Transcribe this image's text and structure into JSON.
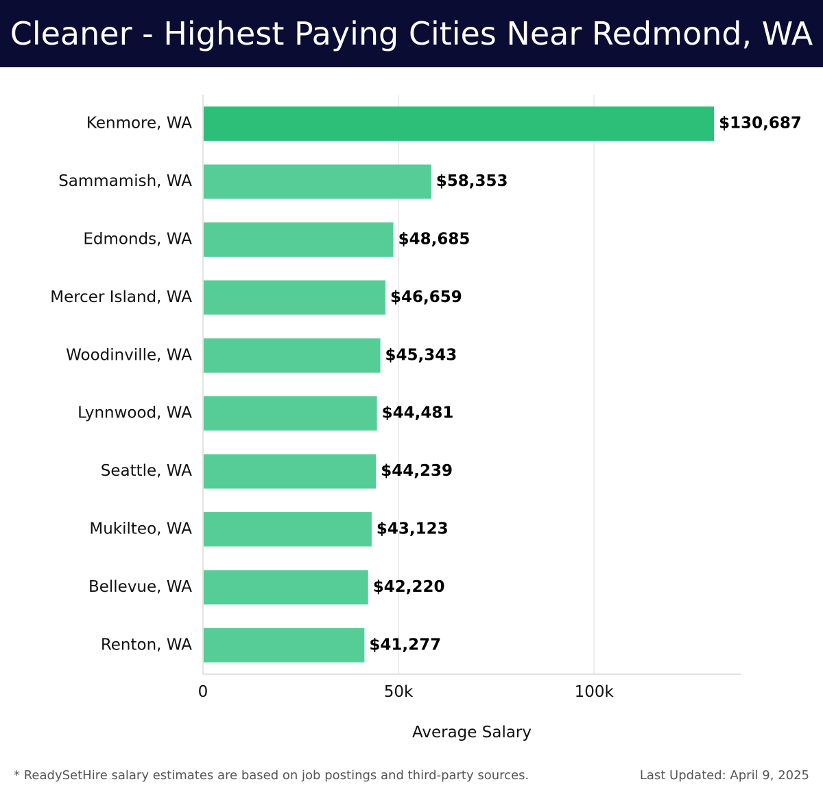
{
  "header": {
    "title": "Cleaner - Highest Paying Cities Near Redmond, WA"
  },
  "footer": {
    "note": "* ReadySetHire salary estimates are based on job postings and third-party sources.",
    "updated": "Last Updated: April 9, 2025"
  },
  "colors": {
    "header_bg": "#0b0c33",
    "top_bar": "#2dbf78",
    "bar": "#56cd96",
    "grid": "#e2e2e2"
  },
  "chart_data": {
    "type": "bar",
    "orientation": "horizontal",
    "title": "Cleaner - Highest Paying Cities Near Redmond, WA",
    "xlabel": "Average Salary",
    "ylabel": "",
    "xlim": [
      0,
      137500
    ],
    "x_ticks": [
      0,
      50000,
      100000
    ],
    "x_tick_labels": [
      "0",
      "50k",
      "100k"
    ],
    "grid": true,
    "categories": [
      "Kenmore, WA",
      "Sammamish, WA",
      "Edmonds, WA",
      "Mercer Island, WA",
      "Woodinville, WA",
      "Lynnwood, WA",
      "Seattle, WA",
      "Mukilteo, WA",
      "Bellevue, WA",
      "Renton, WA"
    ],
    "values": [
      130687,
      58353,
      48685,
      46659,
      45343,
      44481,
      44239,
      43123,
      42220,
      41277
    ],
    "value_labels": [
      "$130,687",
      "$58,353",
      "$48,685",
      "$46,659",
      "$45,343",
      "$44,481",
      "$44,239",
      "$43,123",
      "$42,220",
      "$41,277"
    ]
  }
}
